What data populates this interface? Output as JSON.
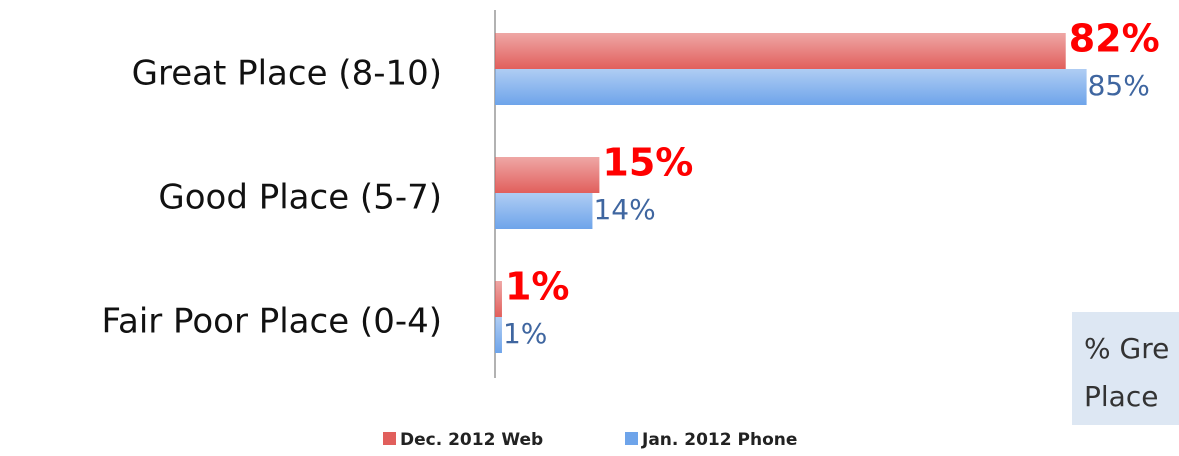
{
  "chart_data": {
    "type": "hbar",
    "categories": [
      "Great Place (8-10)",
      "Good Place (5-7)",
      "Fair Poor Place (0-4)"
    ],
    "series": [
      {
        "name": "Dec. 2012 Web",
        "color": "#e15f5c",
        "values": [
          82,
          15,
          1
        ],
        "value_labels": [
          "82%",
          "15%",
          "1%"
        ],
        "label_color": "#ff0000"
      },
      {
        "name": "Jan. 2012 Phone",
        "color": "#6ea4ea",
        "values": [
          85,
          14,
          1
        ],
        "value_labels": [
          "85%",
          "14%",
          "1%"
        ],
        "label_color": "#3f66a0"
      }
    ],
    "annotation": [
      "% Gre",
      "Place"
    ]
  }
}
